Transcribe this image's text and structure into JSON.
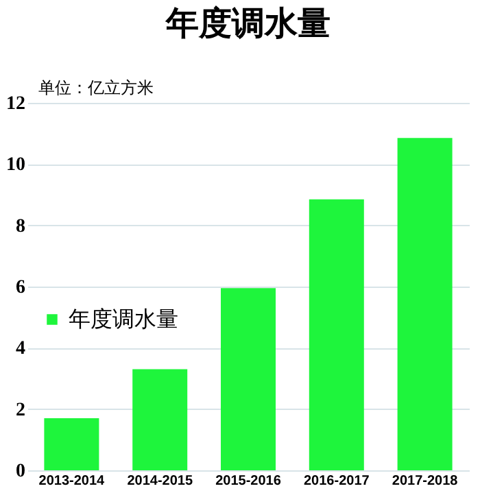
{
  "chart_data": {
    "type": "bar",
    "title": "年度调水量",
    "annotations": [
      "单位：亿立方米"
    ],
    "categories": [
      "2013-2014",
      "2014-2015",
      "2015-2016",
      "2016-2017",
      "2017-2018"
    ],
    "series": [
      {
        "name": "年度调水量",
        "color": "#1ef53c",
        "values": [
          1.7,
          3.3,
          5.95,
          8.85,
          10.85
        ]
      }
    ],
    "ylim": [
      0,
      12
    ],
    "yticks": [
      0,
      2,
      4,
      6,
      8,
      10,
      12
    ],
    "grid": "y",
    "legend": "left"
  }
}
